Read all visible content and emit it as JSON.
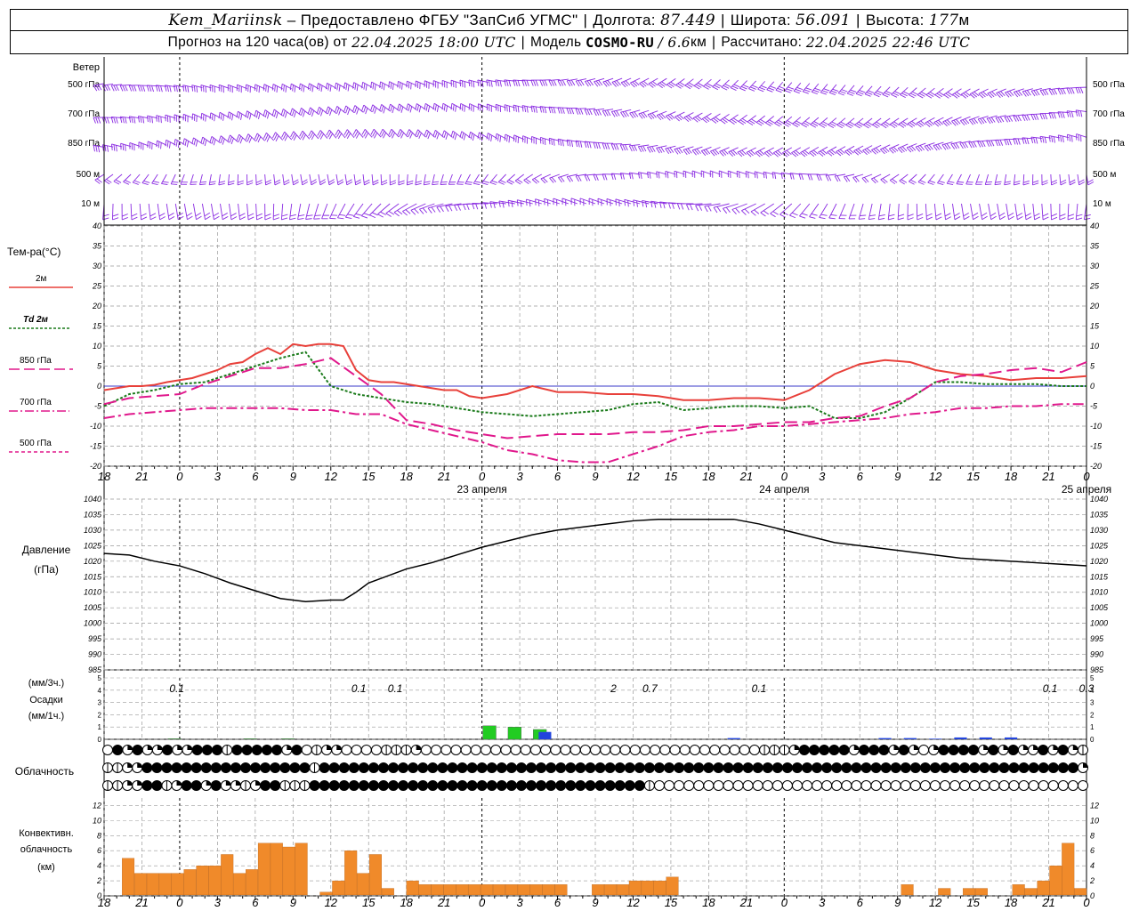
{
  "header": {
    "station": "Kem_Mariinsk",
    "dash": "–",
    "provider": "Предоставлено ФГБУ \"ЗапСиб УГМС\"",
    "lon_label": "Долгота:",
    "lon_value": "87.449",
    "lat_label": "Широта:",
    "lat_value": "56.091",
    "alt_label": "Высота:",
    "alt_value": "177",
    "alt_unit": "м",
    "forecast_prefix": "Прогноз на 120 часа(ов) от",
    "forecast_start": "22.04.2025 18:00 UTC",
    "model_label": "Модель",
    "model_name": "COSMO-RU",
    "model_res": "/ 6.6",
    "model_res_unit": "км",
    "computed_label": "Рассчитано:",
    "computed_time": "22.04.2025 22:46 UTC"
  },
  "colors": {
    "wind": "#8a2be2",
    "t2m": "#e8403a",
    "td2m": "#1a7a1a",
    "t850": "#e0188c",
    "t700": "#e0188c",
    "t500": "#e0188c",
    "pressure": "#000000",
    "zero_line": "#3a3ac8",
    "precip_3h": "#22cc22",
    "precip_1h": "#2244dd",
    "conv_cloud": "#f08a2a",
    "grid": "#999999"
  },
  "panels": {
    "wind": {
      "title": "Ветер",
      "levels": [
        "500 гПа",
        "700 гПа",
        "850 гПа",
        "500 м",
        "10  м"
      ]
    },
    "temperature": {
      "title": "Тем-ра(°С)",
      "legend": [
        {
          "label": "2м",
          "style": "solid"
        },
        {
          "label": "Td  2м",
          "style": "dotted"
        },
        {
          "label": "850 гПа",
          "style": "longdash"
        },
        {
          "label": "700 гПа",
          "style": "dashdot"
        },
        {
          "label": "500 гПа",
          "style": "shortdash"
        }
      ],
      "y_ticks": [
        "40",
        "35",
        "30",
        "25",
        "20",
        "15",
        "10",
        "5",
        "0",
        "-5",
        "-10",
        "-15",
        "-20"
      ]
    },
    "pressure": {
      "title_line1": "Давление",
      "title_line2": "(гПа)",
      "y_ticks": [
        "1040",
        "1035",
        "1030",
        "1025",
        "1020",
        "1015",
        "1010",
        "1005",
        "1000",
        "995",
        "990",
        "985"
      ]
    },
    "precip": {
      "title_line1": "(мм/3ч.)",
      "title_line2": "Осадки",
      "title_line3": "(мм/1ч.)",
      "y_ticks": [
        "5",
        "4",
        "3",
        "2",
        "1",
        "0"
      ],
      "labels": [
        {
          "hour": 6,
          "text": "0.1"
        },
        {
          "hour": 21,
          "text": "0.1"
        },
        {
          "hour": 24,
          "text": "0.1"
        },
        {
          "hour": 42,
          "text": "2"
        },
        {
          "hour": 45,
          "text": "0.7"
        },
        {
          "hour": 54,
          "text": "0.1"
        },
        {
          "hour": 78,
          "text": "0.1"
        },
        {
          "hour": 81,
          "text": "0.3"
        }
      ]
    },
    "cloud": {
      "title": "Облачность"
    },
    "convective": {
      "title_line1": "Конвективн.",
      "title_line2": "облачность",
      "title_line3": "(км)",
      "y_ticks": [
        "12",
        "10",
        "8",
        "6",
        "4",
        "2",
        "0"
      ]
    }
  },
  "x_axis": {
    "hour_labels": [
      "18",
      "21",
      "0",
      "3",
      "6",
      "9",
      "12",
      "15",
      "18",
      "21",
      "0",
      "3",
      "6",
      "9",
      "12",
      "15",
      "18",
      "21",
      "0",
      "3",
      "6",
      "9",
      "12",
      "15",
      "18",
      "21",
      "0"
    ],
    "day_labels": [
      {
        "hour": 30,
        "text": "23 апреля"
      },
      {
        "hour": 54,
        "text": "24 апреля"
      },
      {
        "hour": 78,
        "text": "25 апреля"
      }
    ]
  },
  "chart_data": {
    "type": "line",
    "x_unit": "hours from 22.04.2025 18:00 UTC",
    "xlim": [
      0,
      78
    ],
    "temperature": {
      "ylim": [
        -20,
        40
      ],
      "series": [
        {
          "name": "2м",
          "x": [
            0,
            1,
            2,
            3,
            4,
            5,
            6,
            7,
            8,
            9,
            10,
            11,
            12,
            13,
            14,
            15,
            16,
            17,
            18,
            19,
            20,
            21,
            22,
            23,
            24,
            25,
            26,
            27,
            28,
            29,
            30,
            32,
            34,
            36,
            38,
            40,
            42,
            44,
            46,
            48,
            50,
            52,
            54,
            56,
            58,
            60,
            62,
            64,
            66,
            68,
            70,
            72,
            74,
            76,
            78
          ],
          "y": [
            -1,
            -0.5,
            0,
            0,
            0.3,
            1,
            1.5,
            2,
            3,
            4,
            5.5,
            6,
            8,
            9.5,
            8,
            10.5,
            10,
            10.5,
            10.5,
            10,
            4,
            1.5,
            1,
            1,
            0.5,
            0,
            -0.5,
            -1,
            -1,
            -2.5,
            -3,
            -2,
            0,
            -1.5,
            -1.5,
            -2,
            -2,
            -2.5,
            -3.5,
            -3.5,
            -3,
            -3,
            -3.5,
            -1,
            3,
            5.5,
            6.5,
            6,
            4,
            3,
            2.5,
            1.5,
            2,
            2,
            2.5
          ]
        },
        {
          "name": "Td  2м",
          "x": [
            0,
            2,
            4,
            6,
            8,
            10,
            12,
            14,
            16,
            18,
            20,
            22,
            24,
            26,
            28,
            30,
            32,
            34,
            36,
            38,
            40,
            42,
            44,
            46,
            48,
            50,
            52,
            54,
            56,
            58,
            60,
            62,
            64,
            66,
            68,
            70,
            72,
            74,
            76,
            78
          ],
          "y": [
            -5,
            -2,
            -1,
            0.5,
            1,
            3,
            5,
            7,
            8.5,
            0,
            -2,
            -3,
            -4,
            -4.5,
            -5.5,
            -6.5,
            -7,
            -7.5,
            -7,
            -6.5,
            -6,
            -4.5,
            -4,
            -6,
            -5.5,
            -5,
            -5,
            -5.5,
            -5,
            -8,
            -8,
            -6.5,
            -3,
            1,
            1,
            0.5,
            0.5,
            0.5,
            0,
            0
          ]
        },
        {
          "name": "850 гПа",
          "x": [
            0,
            2,
            4,
            6,
            8,
            10,
            12,
            14,
            16,
            18,
            20,
            22,
            24,
            26,
            28,
            30,
            32,
            34,
            36,
            38,
            40,
            42,
            44,
            46,
            48,
            50,
            52,
            54,
            56,
            58,
            60,
            62,
            64,
            66,
            68,
            70,
            72,
            74,
            76,
            78
          ],
          "y": [
            -4.5,
            -3,
            -2.5,
            -2,
            0.5,
            2.5,
            4.5,
            4.5,
            5.5,
            7,
            2.5,
            -2,
            -8.5,
            -9.5,
            -11,
            -12,
            -13,
            -12.5,
            -12,
            -12,
            -12,
            -11.5,
            -11.5,
            -11,
            -10,
            -10,
            -9.5,
            -9,
            -9,
            -8,
            -7.5,
            -5,
            -3,
            1,
            2.5,
            3,
            4,
            4.5,
            3.5,
            6
          ]
        },
        {
          "name": "700 гПа",
          "x": [
            0,
            2,
            4,
            6,
            8,
            10,
            12,
            14,
            16,
            18,
            20,
            22,
            24,
            26,
            28,
            30,
            32,
            34,
            36,
            38,
            40,
            42,
            44,
            46,
            48,
            50,
            52,
            54,
            56,
            58,
            60,
            62,
            64,
            66,
            68,
            70,
            72,
            74,
            76,
            78
          ],
          "y": [
            -8,
            -7,
            -6.5,
            -6,
            -5.5,
            -5.5,
            -5.5,
            -5.5,
            -6,
            -6,
            -7,
            -7,
            -9.5,
            -11,
            -12.5,
            -14,
            -16,
            -17,
            -18.5,
            -19,
            -19,
            -17,
            -15,
            -12.5,
            -11.5,
            -11,
            -10,
            -10,
            -9.5,
            -9,
            -8.5,
            -8,
            -7,
            -6.5,
            -5.5,
            -5.5,
            -5,
            -5,
            -4.5,
            -4.5
          ]
        }
      ]
    },
    "pressure": {
      "ylim": [
        985,
        1040
      ],
      "x": [
        0,
        2,
        4,
        6,
        8,
        10,
        12,
        14,
        16,
        18,
        19,
        20,
        21,
        22,
        24,
        26,
        28,
        30,
        32,
        34,
        36,
        38,
        40,
        42,
        44,
        46,
        48,
        50,
        52,
        54,
        56,
        58,
        60,
        62,
        64,
        66,
        68,
        70,
        72,
        74,
        76,
        78
      ],
      "y": [
        1022.5,
        1022,
        1020,
        1018.5,
        1016,
        1013,
        1010.5,
        1008,
        1007,
        1007.5,
        1007.5,
        1010,
        1013,
        1014.5,
        1017.5,
        1019.5,
        1022,
        1024.5,
        1026.5,
        1028.5,
        1030,
        1031,
        1032,
        1033,
        1033.5,
        1033.5,
        1033.5,
        1033.5,
        1032,
        1030,
        1028,
        1026,
        1025,
        1024,
        1023,
        1022,
        1021,
        1020.5,
        1020,
        1019.5,
        1019,
        1018.5
      ]
    },
    "precipitation": {
      "ylim": [
        0,
        5
      ],
      "bars_3h": [
        {
          "x": 6,
          "v": 0.05
        },
        {
          "x": 12,
          "v": 0.05
        },
        {
          "x": 15,
          "v": 0.05
        },
        {
          "x": 31,
          "v": 1.1
        },
        {
          "x": 33,
          "v": 1.0
        },
        {
          "x": 35,
          "v": 0.8
        }
      ],
      "bars_1h": [
        {
          "x": 35,
          "v": 0.6
        },
        {
          "x": 50,
          "v": 0.1
        },
        {
          "x": 62,
          "v": 0.1
        },
        {
          "x": 64,
          "v": 0.1
        },
        {
          "x": 66,
          "v": 0.05
        },
        {
          "x": 68,
          "v": 0.15
        },
        {
          "x": 70,
          "v": 0.15
        },
        {
          "x": 72,
          "v": 0.15
        }
      ]
    },
    "convective_cloud": {
      "ylim": [
        0,
        13
      ],
      "bars": [
        {
          "x": 1,
          "v": 5
        },
        {
          "x": 2,
          "v": 3
        },
        {
          "x": 3,
          "v": 3
        },
        {
          "x": 4,
          "v": 3
        },
        {
          "x": 5,
          "v": 3
        },
        {
          "x": 6,
          "v": 3.5
        },
        {
          "x": 7,
          "v": 4
        },
        {
          "x": 8,
          "v": 4
        },
        {
          "x": 9,
          "v": 5.5
        },
        {
          "x": 10,
          "v": 3
        },
        {
          "x": 11,
          "v": 3.5
        },
        {
          "x": 12,
          "v": 7
        },
        {
          "x": 13,
          "v": 7
        },
        {
          "x": 14,
          "v": 6.5
        },
        {
          "x": 15,
          "v": 7
        },
        {
          "x": 17,
          "v": 0.5
        },
        {
          "x": 18,
          "v": 2
        },
        {
          "x": 19,
          "v": 6
        },
        {
          "x": 20,
          "v": 3
        },
        {
          "x": 21,
          "v": 5.5
        },
        {
          "x": 22,
          "v": 1
        },
        {
          "x": 24,
          "v": 2
        },
        {
          "x": 25,
          "v": 1.5
        },
        {
          "x": 26,
          "v": 1.5
        },
        {
          "x": 27,
          "v": 1.5
        },
        {
          "x": 28,
          "v": 1.5
        },
        {
          "x": 29,
          "v": 1.5
        },
        {
          "x": 30,
          "v": 1.5
        },
        {
          "x": 31,
          "v": 1.5
        },
        {
          "x": 32,
          "v": 1.5
        },
        {
          "x": 33,
          "v": 1.5
        },
        {
          "x": 34,
          "v": 1.5
        },
        {
          "x": 35,
          "v": 1.5
        },
        {
          "x": 36,
          "v": 1.5
        },
        {
          "x": 39,
          "v": 1.5
        },
        {
          "x": 40,
          "v": 1.5
        },
        {
          "x": 41,
          "v": 1.5
        },
        {
          "x": 42,
          "v": 2
        },
        {
          "x": 43,
          "v": 2
        },
        {
          "x": 44,
          "v": 2
        },
        {
          "x": 45,
          "v": 2.5
        },
        {
          "x": 64,
          "v": 1.5
        },
        {
          "x": 67,
          "v": 1
        },
        {
          "x": 69,
          "v": 1
        },
        {
          "x": 70,
          "v": 1
        },
        {
          "x": 73,
          "v": 1.5
        },
        {
          "x": 74,
          "v": 1
        },
        {
          "x": 75,
          "v": 2
        },
        {
          "x": 76,
          "v": 4
        },
        {
          "x": 77,
          "v": 7
        },
        {
          "x": 78,
          "v": 1
        }
      ]
    },
    "cloud_cover_rows": [
      "obqbqqbqqbbbfbbbbbqbofqqoooofffqoooooooooooooooooooooooooooooooooofffqbbbbbqbbbqbqoqbbbbqbqbqqbqbqf",
      "ffqqbbbbbbbbbbbbbbbbbfbbbbbbbbbbbbbbbbbbbbbbbbbbbbbbbbbbbbbbbbbbbbbbbbbbbbbbbbbbbbbbbbbbbbbbbbbbbbbq",
      "ffqqbbfqbbqbqqfqbbfffbbbbbbbbbbbbbbbbbbbbbbbbbbbbbbbbbbfoooooooooooooooooooooooooooooooooooooooooooo"
    ]
  }
}
